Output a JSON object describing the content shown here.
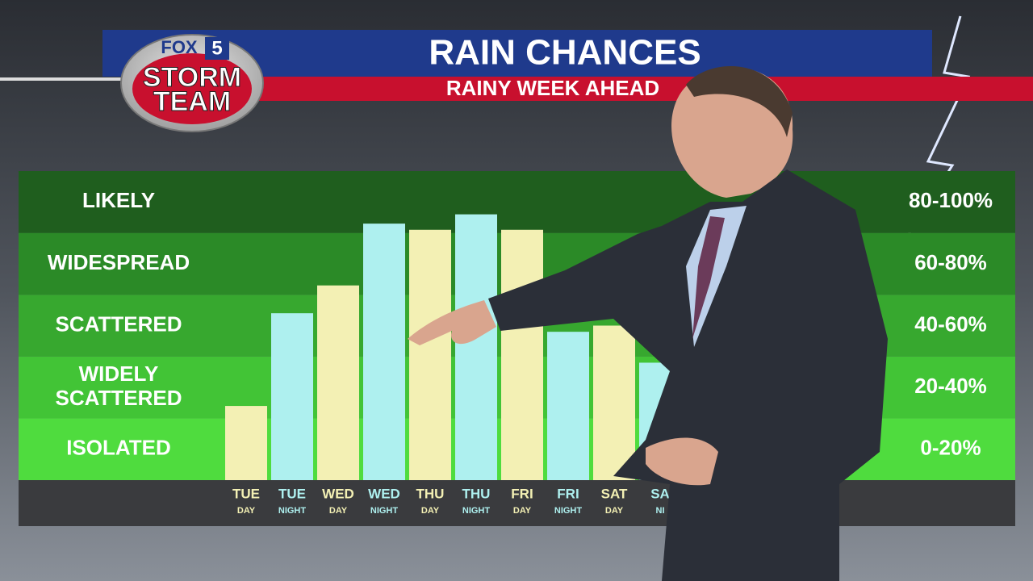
{
  "header": {
    "logo_top": "FOX",
    "logo_num": "5",
    "logo_line1": "STORM",
    "logo_line2": "TEAM"
  },
  "chart_data": {
    "type": "bar",
    "title": "RAIN CHANCES",
    "subtitle": "RAINY WEEK AHEAD",
    "categories": [
      "TUE",
      "TUE",
      "WED",
      "WED",
      "THU",
      "THU",
      "FRI",
      "FRI",
      "SAT",
      "SA"
    ],
    "subcategories": [
      "DAY",
      "NIGHT",
      "DAY",
      "NIGHT",
      "DAY",
      "NIGHT",
      "DAY",
      "NIGHT",
      "DAY",
      "NI"
    ],
    "values": [
      24,
      54,
      63,
      83,
      81,
      86,
      81,
      48,
      50,
      38
    ],
    "colors": [
      "#f3f0b4",
      "#aef0ef",
      "#f3f0b4",
      "#aef0ef",
      "#f3f0b4",
      "#aef0ef",
      "#f3f0b4",
      "#aef0ef",
      "#f3f0b4",
      "#aef0ef"
    ],
    "ylim": [
      0,
      100
    ],
    "bands": [
      {
        "label": "ISOLATED",
        "range": "0-20%",
        "from": 0,
        "to": 20,
        "color": "#4fdc3e"
      },
      {
        "label": "WIDELY SCATTERED",
        "range": "20-40%",
        "from": 20,
        "to": 40,
        "color": "#42c436"
      },
      {
        "label": "SCATTERED",
        "range": "40-60%",
        "from": 40,
        "to": 60,
        "color": "#37a82f"
      },
      {
        "label": "WIDESPREAD",
        "range": "60-80%",
        "from": 60,
        "to": 80,
        "color": "#2b8a27"
      },
      {
        "label": "LIKELY",
        "range": "80-100%",
        "from": 80,
        "to": 100,
        "color": "#1f5e1e"
      }
    ]
  }
}
